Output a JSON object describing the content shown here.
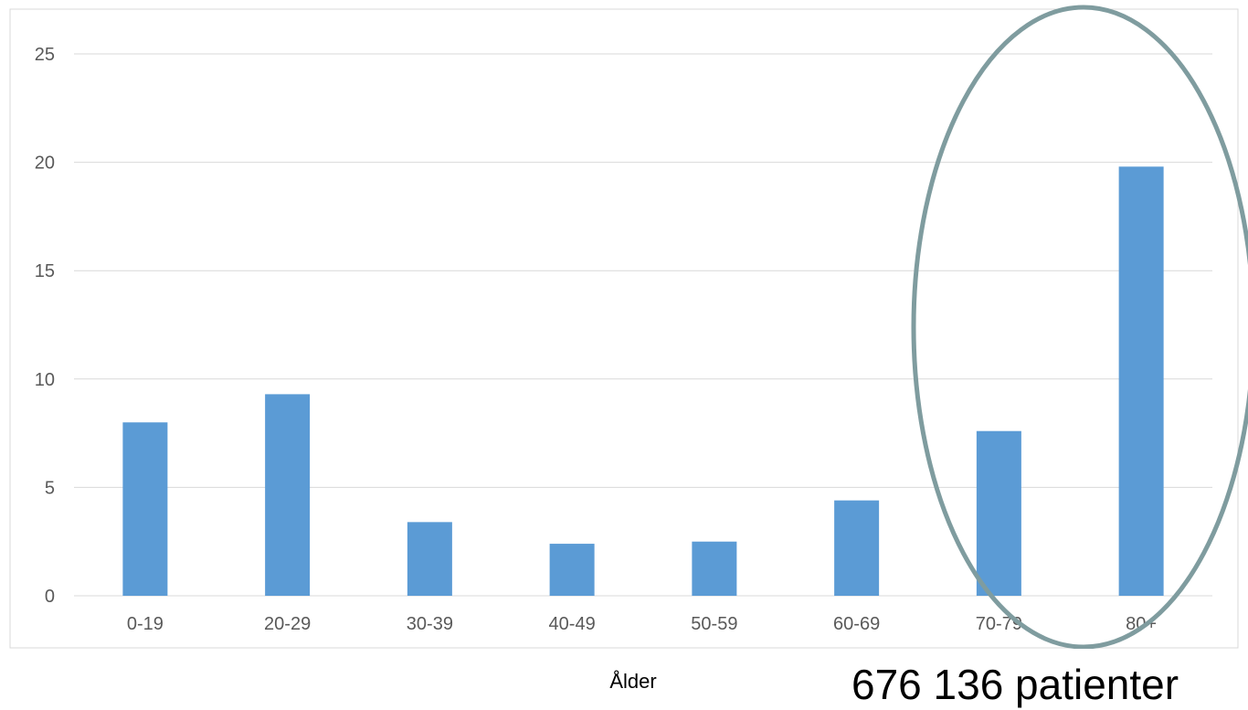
{
  "chart_data": {
    "type": "bar",
    "categories": [
      "0-19",
      "20-29",
      "30-39",
      "40-49",
      "50-59",
      "60-69",
      "70-79",
      "80+"
    ],
    "values": [
      8.0,
      9.3,
      3.4,
      2.4,
      2.5,
      4.4,
      7.6,
      19.8
    ],
    "xlabel": "Ålder",
    "ylabel": "",
    "ylim": [
      0,
      25
    ],
    "yticks": [
      0,
      5,
      10,
      15,
      20,
      25
    ],
    "grid": true,
    "legend": "none",
    "colors": {
      "bar": "#5b9bd5",
      "grid": "#d9d9d9",
      "highlight_ellipse": "#7f9c9f"
    },
    "annotation": "676 136 patienter",
    "highlight": [
      "70-79",
      "80+"
    ]
  }
}
